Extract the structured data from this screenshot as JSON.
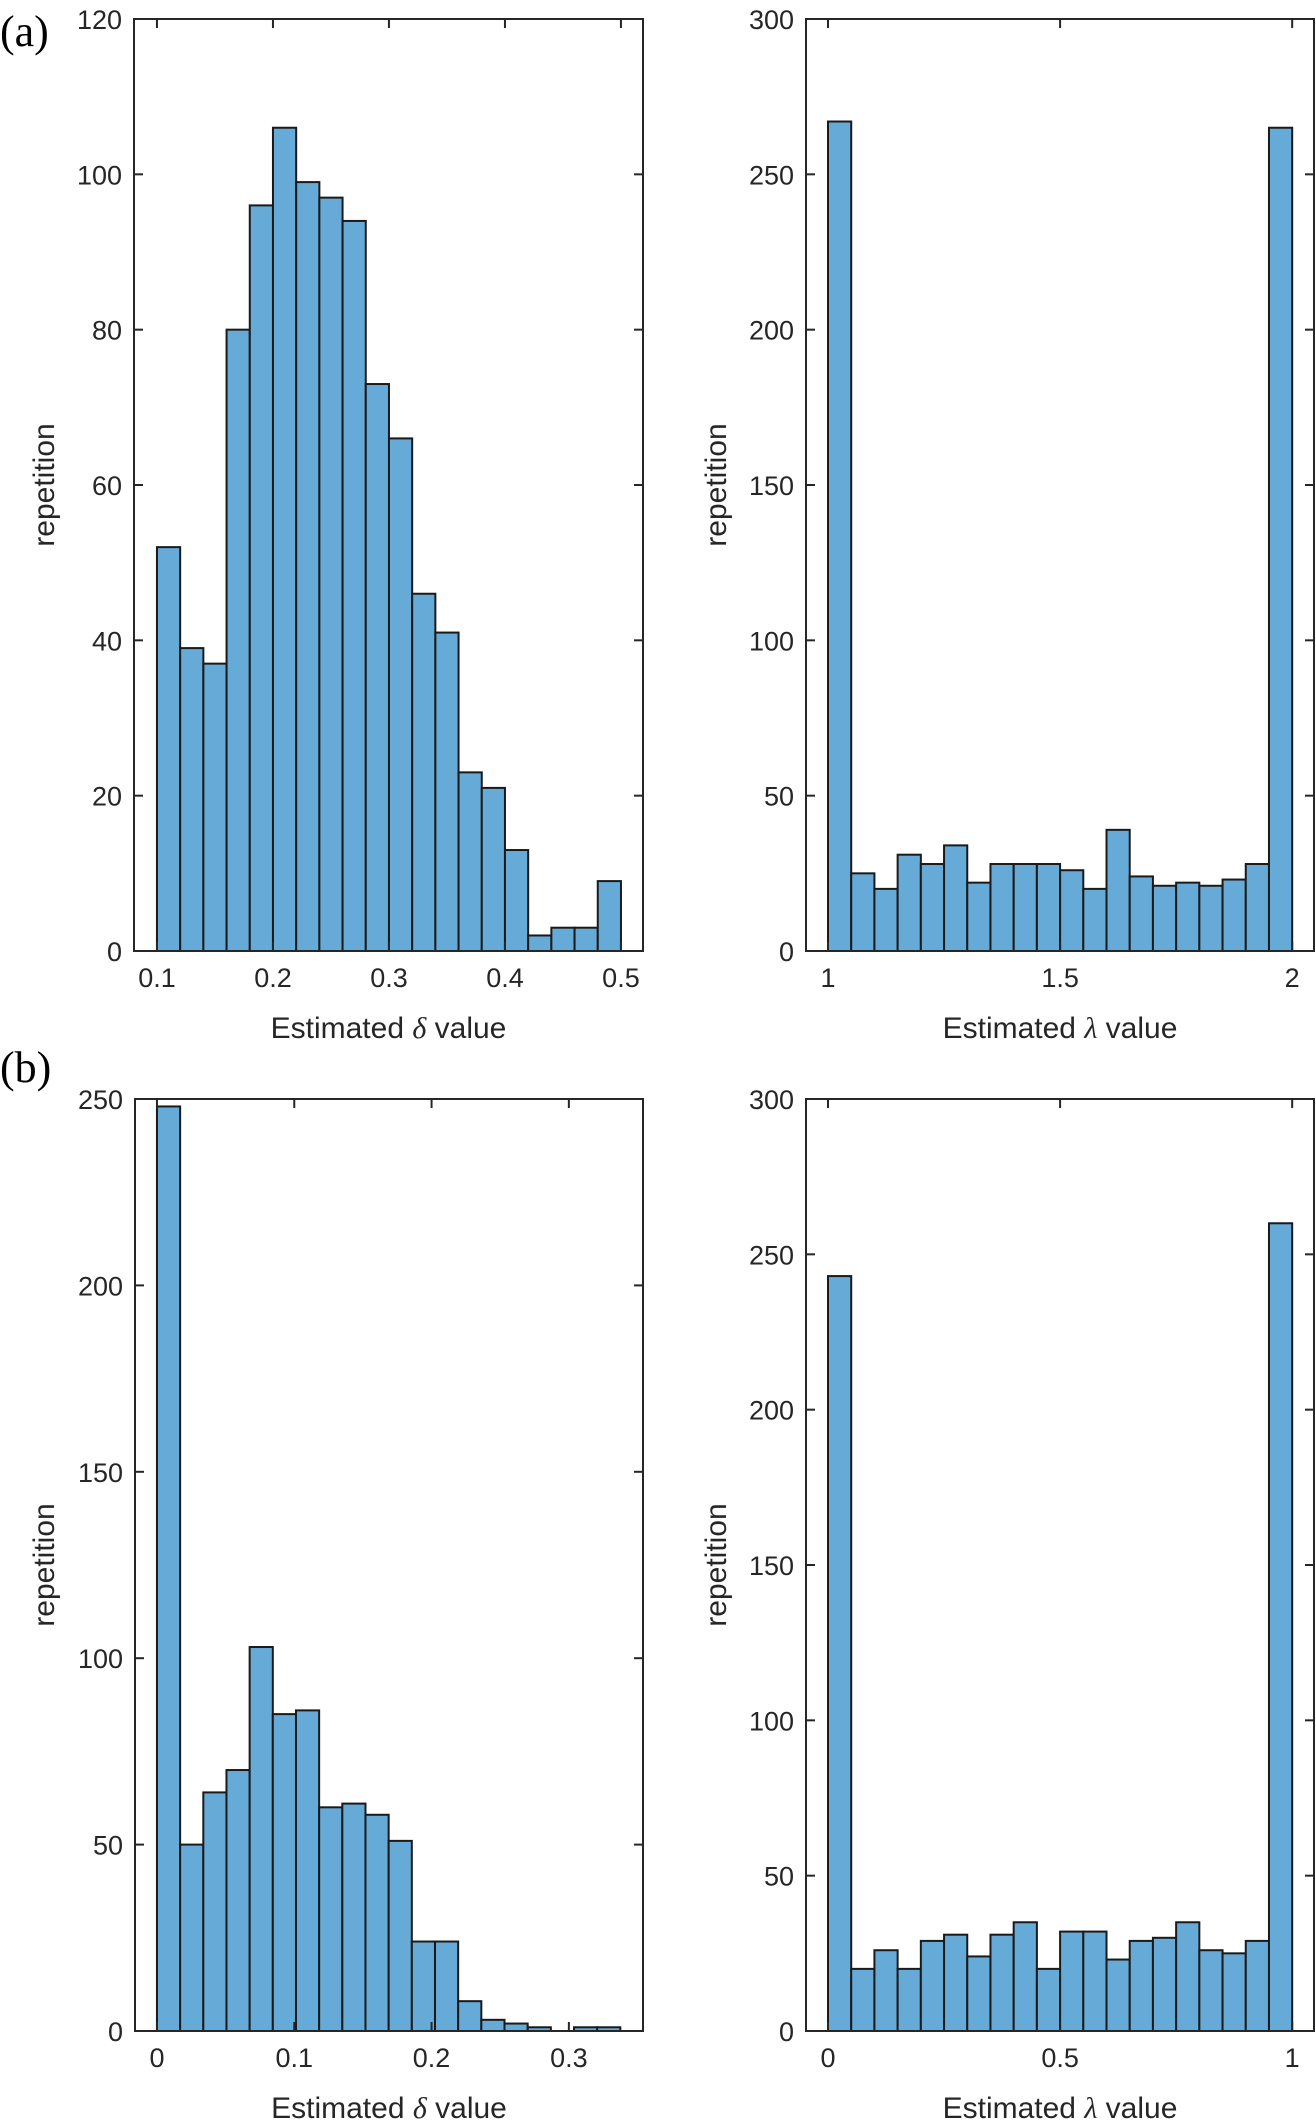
{
  "figure": {
    "panel_labels": [
      "(a)",
      "(b)"
    ],
    "bar_color": "#66aad7",
    "edge_color": "#1a1a1a",
    "axis_color": "#262626"
  },
  "chart_data": [
    {
      "id": "a-delta",
      "panel": "(a)",
      "type": "bar",
      "histogram": true,
      "title": "",
      "xlabel": "Estimated δ value",
      "xlabel_prefix": "Estimated ",
      "xlabel_symbol": "δ",
      "xlabel_suffix": " value",
      "ylabel": "repetition",
      "bin_start": 0.1,
      "bin_width": 0.02,
      "values": [
        52,
        39,
        37,
        80,
        96,
        106,
        99,
        97,
        94,
        73,
        66,
        46,
        41,
        23,
        21,
        13,
        2,
        3,
        3,
        9
      ],
      "xlim": [
        0.0802,
        0.519
      ],
      "ylim": [
        0,
        120
      ],
      "xticks": [
        0.1,
        0.2,
        0.3,
        0.4,
        0.5
      ],
      "xtick_labels": [
        "0.1",
        "0.2",
        "0.3",
        "0.4",
        "0.5"
      ],
      "yticks": [
        0,
        20,
        40,
        60,
        80,
        100,
        120
      ],
      "ytick_labels": [
        "0",
        "20",
        "40",
        "60",
        "80",
        "100",
        "120"
      ],
      "grid": false,
      "legend": "none"
    },
    {
      "id": "a-lambda",
      "panel": "(a)",
      "type": "bar",
      "histogram": true,
      "title": "",
      "xlabel": "Estimated λ value",
      "xlabel_prefix": "Estimated ",
      "xlabel_symbol": "λ",
      "xlabel_suffix": " value",
      "ylabel": "repetition",
      "bin_start": 1.0,
      "bin_width": 0.05,
      "values": [
        267,
        25,
        20,
        31,
        28,
        34,
        22,
        28,
        28,
        28,
        26,
        20,
        39,
        24,
        21,
        22,
        21,
        23,
        28,
        265
      ],
      "xlim": [
        0.9526,
        2.047
      ],
      "ylim": [
        0,
        300
      ],
      "xticks": [
        1,
        1.5,
        2
      ],
      "xtick_labels": [
        "1",
        "1.5",
        "2"
      ],
      "yticks": [
        0,
        50,
        100,
        150,
        200,
        250,
        300
      ],
      "ytick_labels": [
        "0",
        "50",
        "100",
        "150",
        "200",
        "250",
        "300"
      ],
      "grid": false,
      "legend": "none"
    },
    {
      "id": "b-delta",
      "panel": "(b)",
      "type": "bar",
      "histogram": true,
      "title": "",
      "xlabel": "Estimated δ value",
      "xlabel_prefix": "Estimated ",
      "xlabel_symbol": "δ",
      "xlabel_suffix": " value",
      "ylabel": "repetition",
      "bin_start": 0.0,
      "bin_width": 0.016875,
      "values": [
        248,
        50,
        64,
        70,
        103,
        85,
        86,
        60,
        61,
        58,
        51,
        24,
        24,
        8,
        3,
        2,
        1,
        0,
        1,
        1
      ],
      "xlim": [
        -0.016,
        0.354
      ],
      "ylim": [
        0,
        250
      ],
      "xticks": [
        0,
        0.1,
        0.2,
        0.3
      ],
      "xtick_labels": [
        "0",
        "0.1",
        "0.2",
        "0.3"
      ],
      "yticks": [
        0,
        50,
        100,
        150,
        200,
        250
      ],
      "ytick_labels": [
        "0",
        "50",
        "100",
        "150",
        "200",
        "250"
      ],
      "grid": false,
      "legend": "none"
    },
    {
      "id": "b-lambda",
      "panel": "(b)",
      "type": "bar",
      "histogram": true,
      "title": "",
      "xlabel": "Estimated λ value",
      "xlabel_prefix": "Estimated ",
      "xlabel_symbol": "λ",
      "xlabel_suffix": " value",
      "ylabel": "repetition",
      "bin_start": 0.0,
      "bin_width": 0.05,
      "values": [
        243,
        20,
        26,
        20,
        29,
        31,
        24,
        31,
        35,
        20,
        32,
        32,
        23,
        29,
        30,
        35,
        26,
        25,
        29,
        260
      ],
      "xlim": [
        -0.0474,
        1.047
      ],
      "ylim": [
        0,
        300
      ],
      "xticks": [
        0,
        0.5,
        1
      ],
      "xtick_labels": [
        "0",
        "0.5",
        "1"
      ],
      "yticks": [
        0,
        50,
        100,
        150,
        200,
        250,
        300
      ],
      "ytick_labels": [
        "0",
        "50",
        "100",
        "150",
        "200",
        "250",
        "300"
      ],
      "grid": false,
      "legend": "none"
    }
  ]
}
